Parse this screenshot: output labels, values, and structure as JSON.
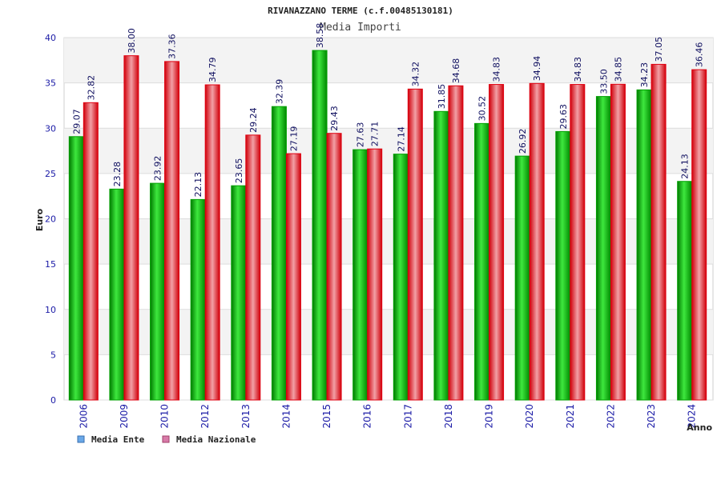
{
  "chart_data": {
    "type": "bar",
    "title": "RIVANAZZANO TERME (c.f.00485130181)",
    "subtitle": "Media Importi",
    "xlabel": "Anno",
    "ylabel": "Euro",
    "ylim": [
      0,
      40
    ],
    "yticks": [
      0,
      5,
      10,
      15,
      20,
      25,
      30,
      35,
      40
    ],
    "grid": true,
    "legend_position": "bottom-left",
    "categories": [
      "2006",
      "2009",
      "2010",
      "2012",
      "2013",
      "2014",
      "2015",
      "2016",
      "2017",
      "2018",
      "2019",
      "2020",
      "2021",
      "2022",
      "2023",
      "2024"
    ],
    "series": [
      {
        "name": "Media Ente",
        "color": "#00b000",
        "legend_color": "#6aa8e8",
        "values": [
          29.07,
          23.28,
          23.92,
          22.13,
          23.65,
          32.39,
          38.58,
          27.63,
          27.14,
          31.85,
          30.52,
          26.92,
          29.63,
          33.5,
          34.23,
          24.13
        ],
        "labels": [
          "29.07",
          "23.28",
          "23.92",
          "22.13",
          "23.65",
          "32.39",
          "38.58",
          "27.63",
          "27.14",
          "31.85",
          "30.52",
          "26.92",
          "29.63",
          "33.50",
          "34.23",
          "24.13"
        ]
      },
      {
        "name": "Media Nazionale",
        "color": "#e01020",
        "legend_color": "#d87aa8",
        "values": [
          32.82,
          38.0,
          37.36,
          34.79,
          29.24,
          27.19,
          29.43,
          27.71,
          34.32,
          34.68,
          34.83,
          34.94,
          34.83,
          34.85,
          37.05,
          36.46
        ],
        "labels": [
          "32.82",
          "38.00",
          "37.36",
          "34.79",
          "29.24",
          "27.19",
          "29.43",
          "27.71",
          "34.32",
          "34.68",
          "34.83",
          "34.94",
          "34.83",
          "34.85",
          "37.05",
          "36.46"
        ]
      }
    ]
  }
}
